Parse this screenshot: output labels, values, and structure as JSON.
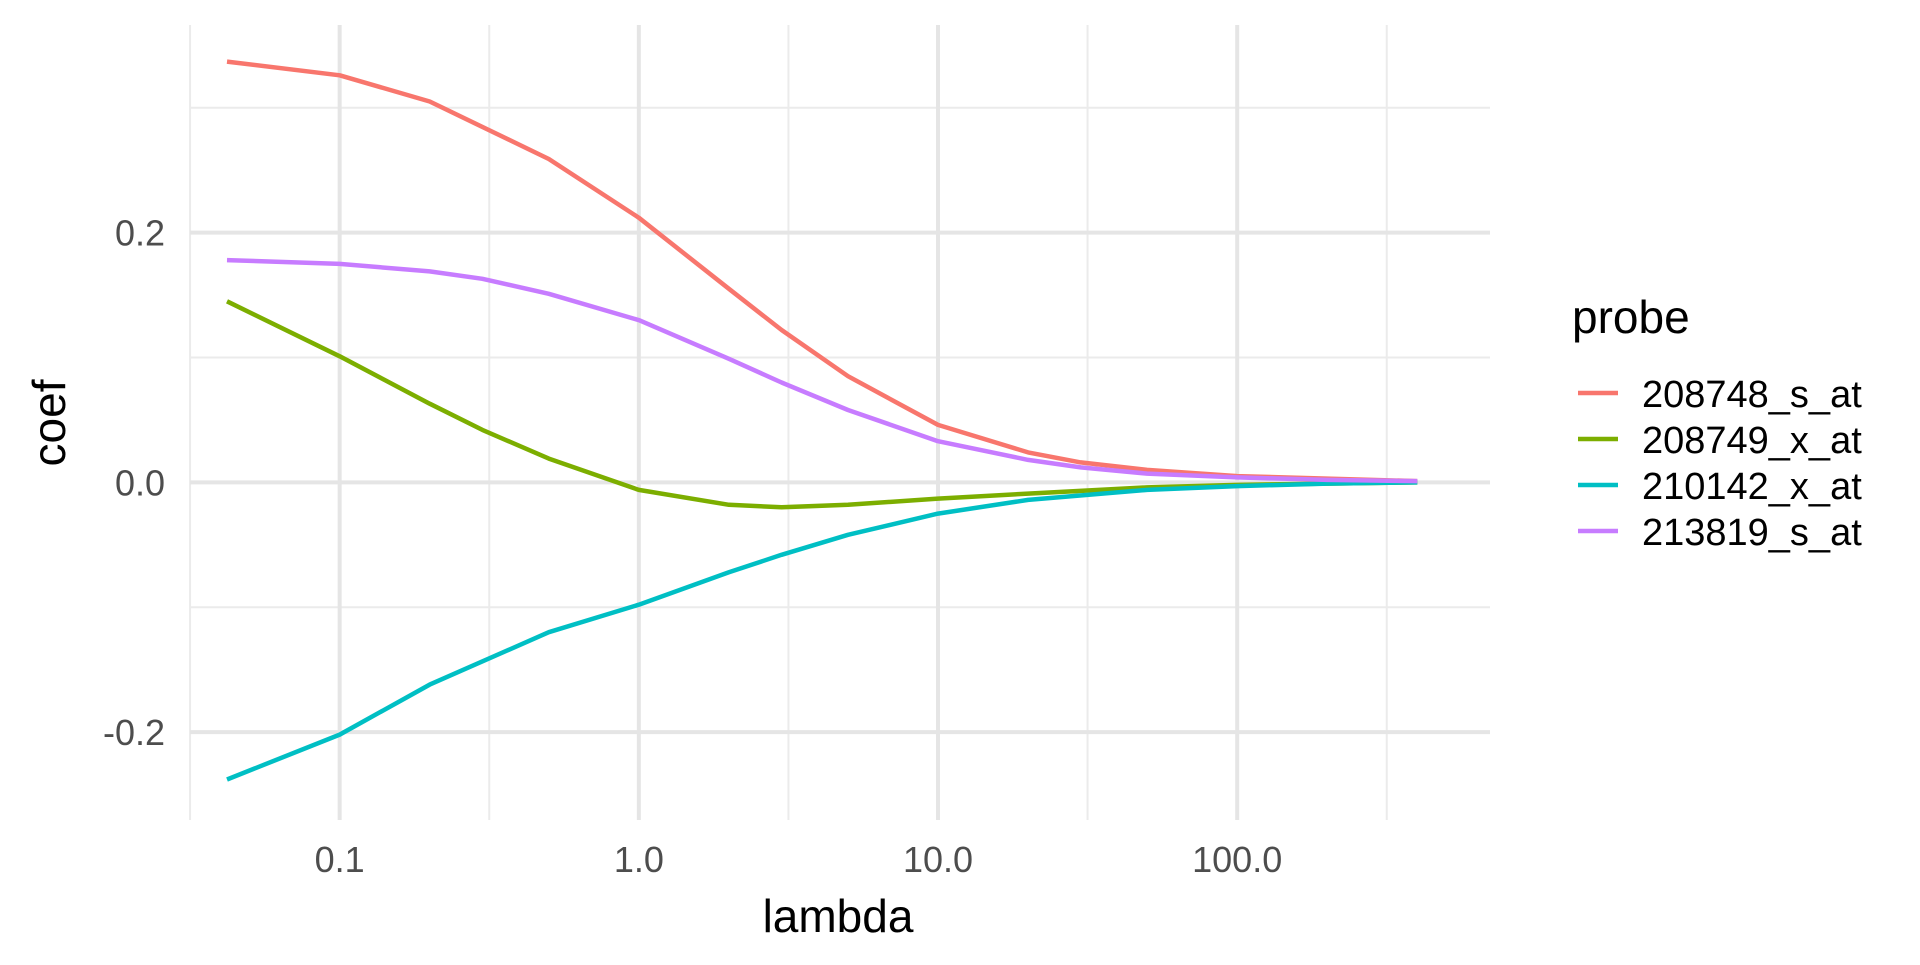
{
  "chart_data": {
    "type": "line",
    "title": "",
    "xlabel": "lambda",
    "ylabel": "coef",
    "x_scale": "log10",
    "xlim": [
      0.0316,
      700
    ],
    "ylim": [
      -0.2704,
      0.3663
    ],
    "x_ticks": [
      0.1,
      1.0,
      10.0,
      100.0
    ],
    "x_tick_labels": [
      "0.1",
      "1.0",
      "10.0",
      "100.0"
    ],
    "y_ticks": [
      -0.2,
      0.0,
      0.2
    ],
    "y_tick_labels": [
      "-0.2",
      "0.0",
      "0.2"
    ],
    "grid": true,
    "legend": {
      "title": "probe",
      "placement": "right"
    },
    "series": [
      {
        "name": "208748_s_at",
        "color": "#F8766D",
        "x": [
          0.042,
          0.1,
          0.2,
          0.5,
          1.0,
          2.0,
          3.0,
          5.0,
          10.0,
          20.0,
          30.0,
          50.0,
          100.0,
          200.0,
          400.0
        ],
        "y": [
          0.337,
          0.326,
          0.305,
          0.259,
          0.212,
          0.155,
          0.122,
          0.085,
          0.046,
          0.024,
          0.016,
          0.01,
          0.005,
          0.003,
          0.001
        ]
      },
      {
        "name": "208749_x_at",
        "color": "#7CAE00",
        "x": [
          0.042,
          0.1,
          0.2,
          0.3,
          0.5,
          1.0,
          2.0,
          3.0,
          5.0,
          10.0,
          20.0,
          50.0,
          100.0,
          200.0,
          400.0
        ],
        "y": [
          0.145,
          0.101,
          0.063,
          0.042,
          0.019,
          -0.006,
          -0.018,
          -0.02,
          -0.018,
          -0.013,
          -0.009,
          -0.004,
          -0.002,
          -0.001,
          0.0
        ]
      },
      {
        "name": "210142_x_at",
        "color": "#00BFC4",
        "x": [
          0.042,
          0.1,
          0.2,
          0.5,
          1.0,
          2.0,
          3.0,
          5.0,
          10.0,
          20.0,
          50.0,
          100.0,
          200.0,
          400.0
        ],
        "y": [
          -0.238,
          -0.202,
          -0.162,
          -0.12,
          -0.098,
          -0.072,
          -0.058,
          -0.042,
          -0.025,
          -0.014,
          -0.006,
          -0.003,
          -0.001,
          0.0
        ]
      },
      {
        "name": "213819_s_at",
        "color": "#C77CFF",
        "x": [
          0.042,
          0.1,
          0.2,
          0.3,
          0.5,
          1.0,
          2.0,
          3.0,
          5.0,
          10.0,
          20.0,
          30.0,
          50.0,
          100.0,
          200.0,
          400.0
        ],
        "y": [
          0.178,
          0.175,
          0.169,
          0.163,
          0.151,
          0.13,
          0.099,
          0.08,
          0.058,
          0.033,
          0.018,
          0.012,
          0.007,
          0.004,
          0.002,
          0.001
        ]
      }
    ]
  }
}
